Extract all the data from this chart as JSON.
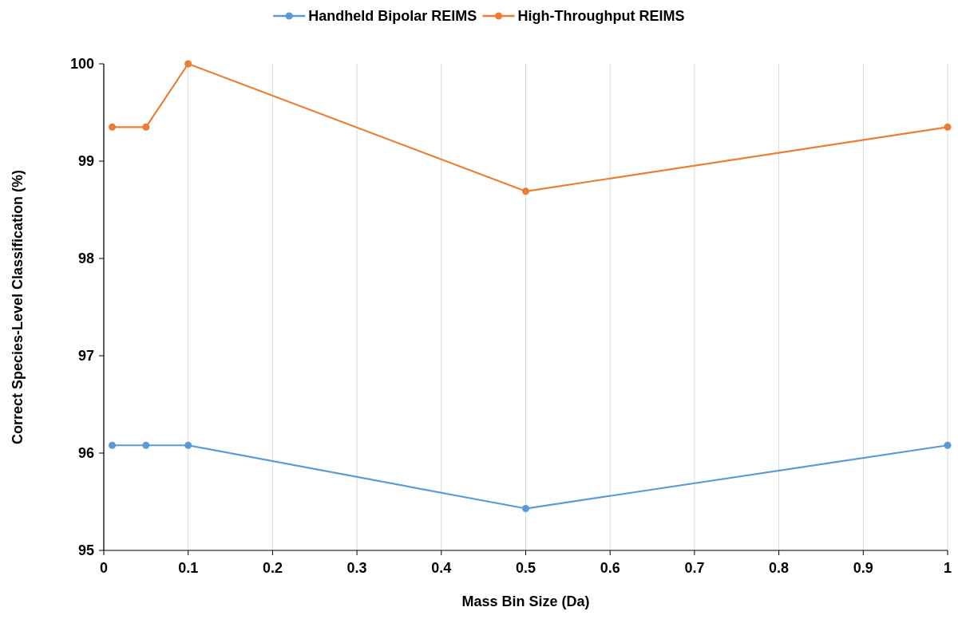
{
  "chart_data": {
    "type": "line",
    "xlabel": "Mass Bin Size (Da)",
    "ylabel": "Correct Species-Level Classification (%)",
    "x": [
      0.01,
      0.05,
      0.1,
      0.5,
      1
    ],
    "series": [
      {
        "name": "Handheld Bipolar REIMS",
        "color": "#5b9bd5",
        "values": [
          96.08,
          96.08,
          96.08,
          95.43,
          96.08
        ]
      },
      {
        "name": "High-Throughput REIMS",
        "color": "#ed7d31",
        "values": [
          99.35,
          99.35,
          100,
          98.69,
          99.35
        ]
      }
    ],
    "xlim": [
      0,
      1
    ],
    "xticks": [
      0,
      0.1,
      0.2,
      0.3,
      0.4,
      0.5,
      0.6,
      0.7,
      0.8,
      0.9,
      1
    ],
    "ylim": [
      95,
      100
    ],
    "yticks": [
      95,
      96,
      97,
      98,
      99,
      100
    ],
    "grid": "x",
    "legend": "top",
    "marker": "circle",
    "line_style": "solid"
  }
}
